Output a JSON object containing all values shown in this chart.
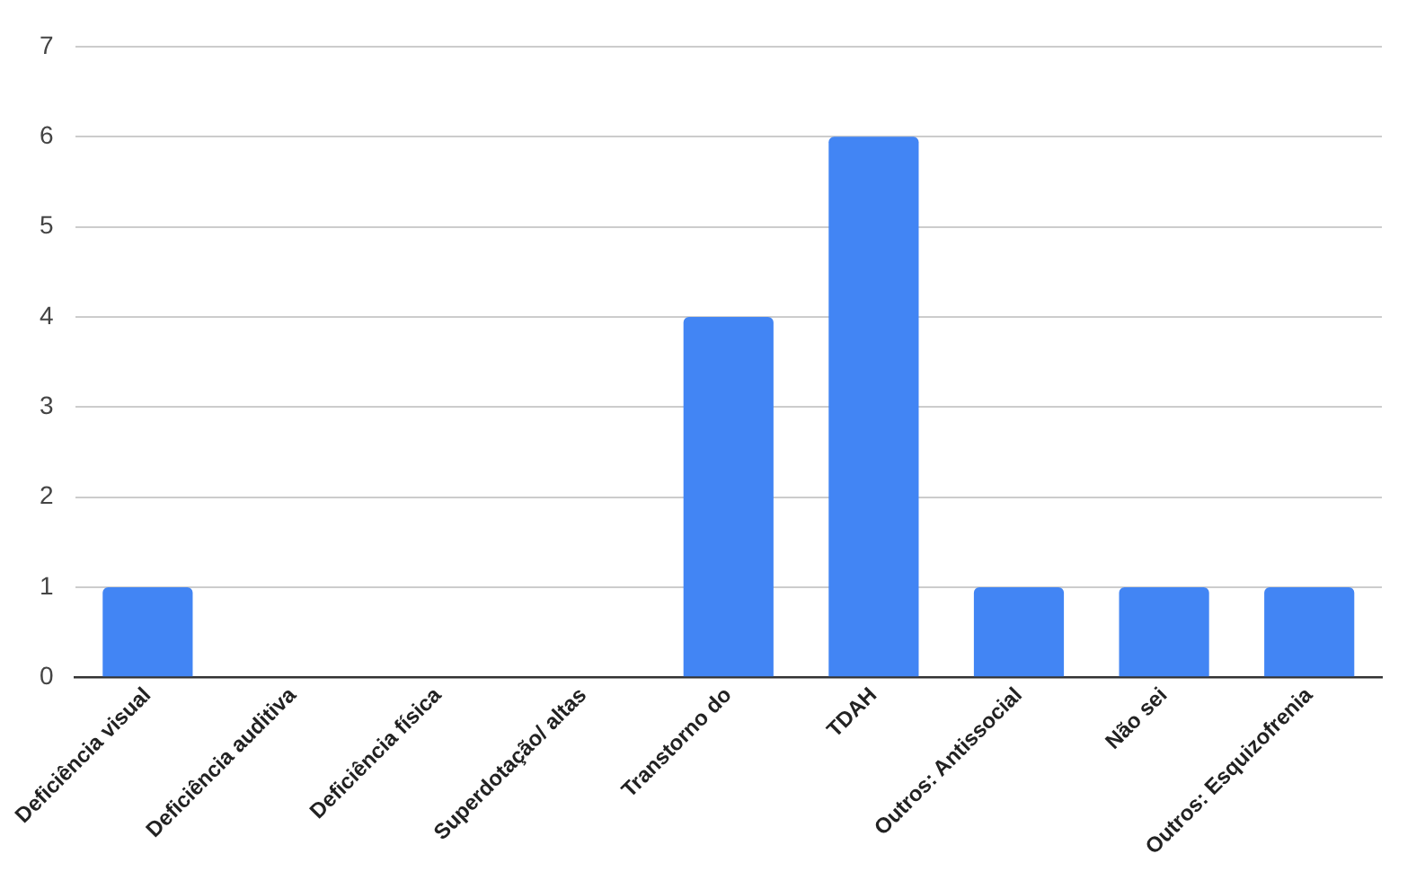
{
  "chart_data": {
    "type": "bar",
    "categories": [
      "Deficiência visual",
      "Deficiência auditiva",
      "Deficiência física",
      "Superdotação/ altas",
      "Transtorno do",
      "TDAH",
      "Outros: Antissocial",
      "Não sei",
      "Outros: Esquizofrenia"
    ],
    "values": [
      1,
      0,
      0,
      0,
      4,
      6,
      1,
      1,
      1
    ],
    "color": "#4285f4",
    "ylim": [
      0,
      7
    ],
    "yticks": [
      0,
      1,
      2,
      3,
      4,
      5,
      6,
      7
    ],
    "grid": "y",
    "legend": false
  }
}
